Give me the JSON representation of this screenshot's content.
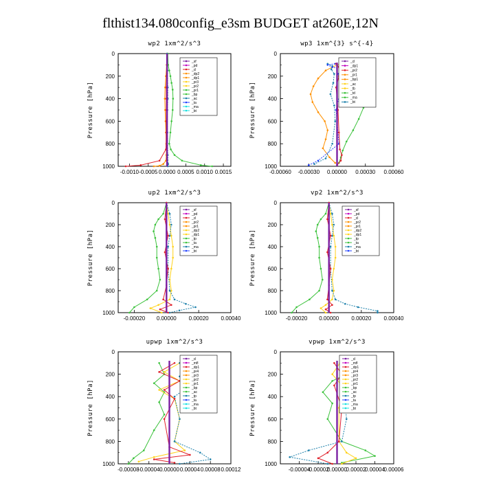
{
  "title": "flthist134.080config_e3sm  BUDGET at260E,12N",
  "colors": {
    "purple": "#7b1fa2",
    "magenta": "#c000c0",
    "red": "#e0202a",
    "orange": "#ff9000",
    "yellow": "#ffd21a",
    "green": "#3cc23c",
    "teal": "#1a7faa",
    "blue": "#2040ff",
    "cyan": "#18e0e0",
    "darkred": "#a00000"
  },
  "chart_data": [
    {
      "type": "line",
      "title": "wp2  1xm^2/s^3",
      "ylabel": "Pressure [hPa]",
      "xlim": [
        -0.0013,
        0.0017
      ],
      "ylim": [
        1000,
        0
      ],
      "xticks": [
        "-0.0010",
        "-0.0005",
        "0.0000",
        "0.0005",
        "0.0010",
        "0.0015"
      ],
      "yticks": [
        "0",
        "200",
        "400",
        "600",
        "800",
        "1000"
      ],
      "legend": [
        "_sf",
        "_pd",
        "_cl",
        "_dp2",
        "_dp1",
        "_pr3",
        "_pr2",
        "_pr1",
        "_bp",
        "_ac",
        "_ta",
        "_ma",
        "_bt"
      ],
      "series": [
        {
          "name": "_pr1",
          "color": "green",
          "x": [
            2e-05,
            3e-05,
            6e-05,
            9e-05,
            0.00012,
            0.00015,
            0.00016,
            0.00015,
            0.00012,
            9e-05,
            6e-05,
            0.0001,
            0.0002,
            0.0004,
            0.0009,
            0.0012
          ],
          "y": [
            0,
            100,
            150,
            200,
            260,
            320,
            400,
            500,
            600,
            700,
            800,
            850,
            900,
            950,
            990,
            1000
          ]
        },
        {
          "name": "_dp1",
          "color": "orange",
          "x": [
            0,
            -1e-05,
            -3e-05,
            -5e-05,
            -6e-05,
            -5e-05,
            -4e-05,
            -3e-05,
            -2e-05,
            -2e-05,
            -3e-05,
            -0.0001,
            -0.0002,
            -0.00035
          ],
          "y": [
            0,
            100,
            200,
            300,
            400,
            500,
            600,
            700,
            800,
            900,
            950,
            980,
            995,
            1000
          ]
        },
        {
          "name": "_dp2",
          "color": "red",
          "x": [
            0,
            0,
            -1e-05,
            -2e-05,
            -2e-05,
            -2e-05,
            -2e-05,
            -2e-05,
            -3e-05,
            -0.0002,
            -0.0007,
            -0.0011
          ],
          "y": [
            0,
            100,
            200,
            300,
            400,
            500,
            600,
            700,
            850,
            950,
            990,
            1000
          ]
        },
        {
          "name": "_bp",
          "color": "teal",
          "x": [
            0,
            1e-05,
            2e-05,
            2e-05,
            1e-05,
            1e-05,
            2e-05,
            3e-05,
            2e-05
          ],
          "y": [
            0,
            150,
            300,
            400,
            500,
            700,
            900,
            980,
            1000
          ]
        },
        {
          "name": "_sf",
          "color": "purple",
          "x": [
            0,
            0,
            0,
            0,
            0,
            0
          ],
          "y": [
            0,
            200,
            400,
            600,
            800,
            1000
          ]
        }
      ]
    },
    {
      "type": "line",
      "title": "wp3  1xm^{3} s^{-4}",
      "ylabel": "Pressure [hPa]",
      "xlim": [
        -0.0006,
        0.0006
      ],
      "ylim": [
        1000,
        0
      ],
      "xticks": [
        "-0.00060",
        "-0.00030",
        "0.00000",
        "0.00030",
        "0.00060"
      ],
      "yticks": [
        "0",
        "200",
        "400",
        "600",
        "800",
        "1000"
      ],
      "legend": [
        "_cl",
        "_dp1",
        "_pr2",
        "_pr1",
        "_bp1",
        "_ac",
        "_tb",
        "_td",
        "_ma",
        "_bt"
      ],
      "series": [
        {
          "name": "_pr2",
          "color": "orange",
          "x": [
            3e-05,
            -5e-05,
            -0.00012,
            -0.0002,
            -0.00025,
            -0.00028,
            -0.00026,
            -0.0002,
            -0.00013,
            -0.0001,
            -0.00012,
            -0.00015,
            -8e-05,
            -2e-05
          ],
          "y": [
            90,
            120,
            150,
            220,
            290,
            360,
            430,
            520,
            600,
            680,
            760,
            840,
            920,
            970
          ]
        },
        {
          "name": "_pr1",
          "color": "green",
          "x": [
            6e-05,
            9e-05,
            0.00015,
            0.00026,
            0.00028,
            0.00023,
            0.00017,
            0.0001,
            6e-05,
            4e-05,
            2e-05
          ],
          "y": [
            90,
            150,
            250,
            380,
            480,
            580,
            680,
            780,
            860,
            920,
            970
          ]
        },
        {
          "name": "_ac",
          "color": "teal",
          "x": [
            -0.0001,
            -5e-05,
            -6e-05,
            -3e-05,
            -4e-05,
            -7e-05,
            -3e-05,
            -2e-05,
            -5e-05,
            -0.00012,
            -0.00024
          ],
          "y": [
            90,
            110,
            140,
            180,
            260,
            360,
            460,
            600,
            800,
            930,
            980
          ]
        },
        {
          "name": "_td",
          "color": "blue",
          "x": [
            -2e-05,
            -0.0001,
            -5e-05,
            6e-05,
            1e-05,
            4e-05,
            3e-05,
            -1e-05,
            2e-05,
            -0.0002,
            -0.0003
          ],
          "y": [
            90,
            100,
            120,
            140,
            180,
            250,
            350,
            500,
            800,
            950,
            990
          ]
        },
        {
          "name": "_dp1",
          "color": "red",
          "x": [
            -1e-05,
            2e-05,
            3e-05,
            2e-05,
            -1e-05,
            1e-05,
            2e-05,
            3e-05,
            5e-05,
            4e-05,
            0
          ],
          "y": [
            90,
            120,
            160,
            200,
            300,
            500,
            700,
            850,
            900,
            950,
            990
          ]
        },
        {
          "name": "_cl",
          "color": "purple",
          "x": [
            0,
            0,
            0,
            0
          ],
          "y": [
            80,
            400,
            800,
            1000
          ]
        }
      ]
    },
    {
      "type": "line",
      "title": "up2  1xm^2/s^3",
      "ylabel": "Pressure [hPa]",
      "xlim": [
        -0.0003,
        0.0004
      ],
      "ylim": [
        1000,
        0
      ],
      "xticks": [
        "-0.00020",
        "0.00000",
        "0.00020",
        "0.00040"
      ],
      "yticks": [
        "0",
        "200",
        "400",
        "600",
        "800",
        "1000"
      ],
      "legend": [
        "_sf",
        "_pd",
        "_cl",
        "_pr2",
        "_pr1",
        "_dp2",
        "_dp1",
        "_tp",
        "_ta",
        "_ma",
        "_bt"
      ],
      "series": [
        {
          "name": "_dp2",
          "color": "green",
          "x": [
            0,
            -2e-05,
            -5e-05,
            -7e-05,
            -8e-05,
            -7e-05,
            -6e-05,
            -6e-05,
            -5e-05,
            -4e-05,
            -6e-05,
            -0.00012,
            -0.0002,
            -0.00023
          ],
          "y": [
            0,
            100,
            150,
            200,
            260,
            320,
            400,
            500,
            600,
            700,
            800,
            880,
            950,
            1000
          ]
        },
        {
          "name": "_pr1",
          "color": "yellow",
          "x": [
            0,
            1e-05,
            2e-05,
            3e-05,
            4e-05,
            4e-05,
            3e-05,
            2e-05,
            3e-05,
            2e-05,
            -5e-05,
            -0.0001,
            -3e-05
          ],
          "y": [
            0,
            100,
            200,
            300,
            400,
            500,
            600,
            700,
            800,
            880,
            930,
            960,
            1000
          ]
        },
        {
          "name": "_tp",
          "color": "teal",
          "x": [
            0,
            2e-05,
            3e-05,
            2e-05,
            1e-05,
            1e-05,
            2e-05,
            5e-05,
            0.00012,
            0.00018,
            8e-05,
            2e-05
          ],
          "y": [
            0,
            100,
            200,
            300,
            400,
            600,
            800,
            880,
            920,
            950,
            980,
            1000
          ]
        },
        {
          "name": "_pd",
          "color": "red",
          "x": [
            0,
            -1e-05,
            1e-05,
            -1e-05,
            1e-05,
            0,
            -2e-05,
            3e-05,
            -4e-05,
            1e-05
          ],
          "y": [
            0,
            150,
            300,
            450,
            600,
            750,
            880,
            930,
            970,
            1000
          ]
        },
        {
          "name": "_sf",
          "color": "purple",
          "x": [
            0,
            0,
            0,
            0,
            0,
            0
          ],
          "y": [
            0,
            200,
            400,
            600,
            800,
            1000
          ]
        }
      ]
    },
    {
      "type": "line",
      "title": "vp2  1xm^2/s^3",
      "ylabel": "Pressure [hPa]",
      "xlim": [
        -0.0003,
        0.0004
      ],
      "ylim": [
        1000,
        0
      ],
      "xticks": [
        "-0.00020",
        "0.00000",
        "0.00020",
        "0.00040"
      ],
      "yticks": [
        "0",
        "200",
        "400",
        "600",
        "800",
        "1000"
      ],
      "legend": [
        "_sf",
        "_pd",
        "_cl",
        "_pr2",
        "_pr1",
        "_dp2",
        "_dp1",
        "_tp",
        "_ta",
        "_ma",
        "_bt"
      ],
      "series": [
        {
          "name": "_dp2",
          "color": "green",
          "x": [
            0,
            -2e-05,
            -5e-05,
            -7e-05,
            -8e-05,
            -7e-05,
            -6e-05,
            -6e-05,
            -5e-05,
            -4e-05,
            -6e-05,
            -0.00012,
            -0.0002,
            -0.00023
          ],
          "y": [
            0,
            100,
            150,
            200,
            260,
            320,
            400,
            500,
            600,
            700,
            800,
            880,
            950,
            1000
          ]
        },
        {
          "name": "_pr1",
          "color": "yellow",
          "x": [
            0,
            1e-05,
            2e-05,
            3e-05,
            4e-05,
            4e-05,
            3e-05,
            2e-05,
            3e-05,
            2e-05,
            -2e-05,
            -5e-05,
            -2e-05
          ],
          "y": [
            0,
            100,
            200,
            300,
            400,
            500,
            600,
            700,
            800,
            880,
            930,
            960,
            1000
          ]
        },
        {
          "name": "_tp",
          "color": "teal",
          "x": [
            0,
            2e-05,
            3e-05,
            2e-05,
            1e-05,
            1e-05,
            2e-05,
            4e-05,
            0.0001,
            0.00018,
            0.0003,
            0.0003
          ],
          "y": [
            0,
            100,
            200,
            300,
            400,
            600,
            800,
            880,
            920,
            950,
            985,
            1000
          ]
        },
        {
          "name": "_pd",
          "color": "red",
          "x": [
            0,
            -1e-05,
            1e-05,
            -1e-05,
            1e-05,
            0,
            -1e-05,
            2e-05,
            -2e-05,
            1e-05
          ],
          "y": [
            0,
            150,
            300,
            450,
            600,
            750,
            880,
            930,
            970,
            1000
          ]
        },
        {
          "name": "_sf",
          "color": "purple",
          "x": [
            0,
            0,
            0,
            0,
            0,
            0
          ],
          "y": [
            0,
            200,
            400,
            600,
            800,
            1000
          ]
        }
      ]
    },
    {
      "type": "line",
      "title": "upwp  1xm^2/s^3",
      "ylabel": "Pressure [hPa]",
      "xlim": [
        -0.0001,
        0.00012
      ],
      "ylim": [
        1000,
        0
      ],
      "xticks": [
        "-0.00008",
        "-0.00004",
        "0.00000",
        "0.00004",
        "0.00008",
        "0.00012"
      ],
      "yticks": [
        "0",
        "200",
        "400",
        "600",
        "800",
        "1000"
      ],
      "legend": [
        "_cl",
        "_mfl",
        "_dp1",
        "_pr4",
        "_pr3",
        "_pr2",
        "_pr1",
        "_bp",
        "_ac",
        "_tp",
        "_ta",
        "_ma",
        "_bt"
      ],
      "series": [
        {
          "name": "_bp",
          "color": "green",
          "x": [
            -2e-05,
            -1e-05,
            -3e-05,
            -1e-05,
            -2e-05,
            -1e-05,
            -3e-05,
            -5e-05,
            -7e-05,
            -8e-05
          ],
          "y": [
            100,
            200,
            280,
            360,
            450,
            560,
            700,
            880,
            950,
            1000
          ]
        },
        {
          "name": "_pr1",
          "color": "yellow",
          "x": [
            2e-05,
            -1e-05,
            2e-05,
            -2e-05,
            1e-05,
            2e-05,
            1e-05,
            3e-05,
            -3e-05,
            -6e-05
          ],
          "y": [
            100,
            180,
            260,
            340,
            420,
            600,
            800,
            880,
            940,
            980
          ]
        },
        {
          "name": "_ac",
          "color": "teal",
          "x": [
            2e-05,
            5e-05,
            2e-05,
            4e-05,
            1e-05,
            2e-05,
            1e-05,
            6e-05,
            8e-05,
            2e-05
          ],
          "y": [
            100,
            150,
            220,
            300,
            400,
            600,
            800,
            900,
            960,
            1000
          ]
        },
        {
          "name": "_dp1",
          "color": "red",
          "x": [
            1e-05,
            -2e-05,
            2e-05,
            -1e-05,
            1e-05,
            -1e-05,
            0,
            4e-05,
            -3e-05,
            1e-05
          ],
          "y": [
            100,
            180,
            260,
            340,
            420,
            600,
            850,
            920,
            960,
            990
          ]
        },
        {
          "name": "_cl",
          "color": "purple",
          "x": [
            0,
            0,
            0,
            0
          ],
          "y": [
            80,
            400,
            800,
            1000
          ]
        }
      ]
    },
    {
      "type": "line",
      "title": "vpwp  1xm^2/s^3",
      "ylabel": "Pressure [hPa]",
      "xlim": [
        -6e-05,
        6e-05
      ],
      "ylim": [
        1000,
        0
      ],
      "xticks": [
        "-0.00004",
        "-0.00002",
        "0.00000",
        "0.00002",
        "0.00004",
        "0.00006"
      ],
      "yticks": [
        "0",
        "200",
        "400",
        "600",
        "800",
        "1000"
      ],
      "legend": [
        "_cl",
        "_mfl",
        "_dp1",
        "_pr4",
        "_pr3",
        "_pr2",
        "_pr1",
        "_bp",
        "_ac",
        "_tp",
        "_ta",
        "_ma",
        "_bt"
      ],
      "series": [
        {
          "name": "_bp",
          "color": "green",
          "x": [
            5e-06,
            1.5e-05,
            -5e-06,
            -1.5e-05,
            -5e-06,
            -1e-05,
            5e-06,
            3e-05,
            4e-05,
            5e-06
          ],
          "y": [
            100,
            180,
            260,
            360,
            460,
            600,
            800,
            880,
            930,
            990
          ]
        },
        {
          "name": "_ac",
          "color": "teal",
          "x": [
            5e-06,
            1.2e-05,
            5e-06,
            1.5e-05,
            8e-06,
            1e-05,
            5e-06,
            -3e-05,
            -5e-05,
            -1e-05
          ],
          "y": [
            100,
            150,
            220,
            300,
            400,
            600,
            800,
            880,
            940,
            1000
          ]
        },
        {
          "name": "_pr1",
          "color": "yellow",
          "x": [
            3e-06,
            -5e-06,
            5e-06,
            2e-06,
            2e-06,
            1e-05,
            2e-05,
            5e-06
          ],
          "y": [
            100,
            200,
            300,
            500,
            800,
            900,
            950,
            1000
          ]
        },
        {
          "name": "_dp1",
          "color": "red",
          "x": [
            -3e-06,
            5e-06,
            -3e-06,
            5e-06,
            2e-06,
            -1e-05,
            -2e-05,
            -5e-06
          ],
          "y": [
            100,
            200,
            300,
            500,
            800,
            900,
            950,
            1000
          ]
        },
        {
          "name": "_cl",
          "color": "purple",
          "x": [
            0,
            0,
            0,
            0
          ],
          "y": [
            80,
            400,
            800,
            1000
          ]
        }
      ]
    }
  ]
}
